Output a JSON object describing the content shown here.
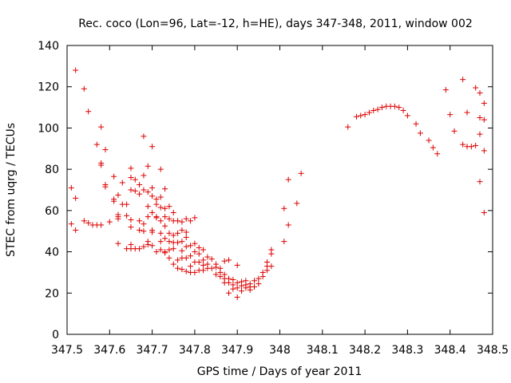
{
  "chart_data": {
    "type": "scatter",
    "title": "Rec. coco (Lon=96, Lat=-12, h=HE), days 347-348, 2011, window 002",
    "xlabel": "GPS time / Days of year 2011",
    "ylabel": "STEC from uqrg / TECUs",
    "xlim": [
      347.5,
      348.5
    ],
    "ylim": [
      0,
      140
    ],
    "xticks": [
      "347.5",
      "347.6",
      "347.7",
      "347.8",
      "347.9",
      "348",
      "348.1",
      "348.2",
      "348.3",
      "348.4",
      "348.5"
    ],
    "yticks": [
      "0",
      "20",
      "40",
      "60",
      "80",
      "100",
      "120",
      "140"
    ],
    "grid": false,
    "marker": "+",
    "color": "#dd0000",
    "series": [
      {
        "points": [
          [
            347.51,
            71
          ],
          [
            347.51,
            53.5
          ],
          [
            347.52,
            128
          ],
          [
            347.52,
            66
          ],
          [
            347.52,
            50.5
          ],
          [
            347.54,
            119
          ],
          [
            347.54,
            55
          ],
          [
            347.55,
            108
          ],
          [
            347.55,
            54
          ],
          [
            347.56,
            53
          ],
          [
            347.57,
            92
          ],
          [
            347.57,
            53
          ],
          [
            347.58,
            100.5
          ],
          [
            347.58,
            83
          ],
          [
            347.58,
            82
          ],
          [
            347.58,
            53
          ],
          [
            347.59,
            89.5
          ],
          [
            347.59,
            72.5
          ],
          [
            347.59,
            71.5
          ],
          [
            347.6,
            54.5
          ],
          [
            347.61,
            76.5
          ],
          [
            347.61,
            65.5
          ],
          [
            347.61,
            64.5
          ],
          [
            347.62,
            56
          ],
          [
            347.62,
            58
          ],
          [
            347.62,
            44
          ],
          [
            347.62,
            57
          ],
          [
            347.62,
            67.5
          ],
          [
            347.63,
            73.5
          ],
          [
            347.63,
            63
          ],
          [
            347.64,
            63
          ],
          [
            347.64,
            41.5
          ],
          [
            347.64,
            57.5
          ],
          [
            347.65,
            80.5
          ],
          [
            347.65,
            76
          ],
          [
            347.65,
            70
          ],
          [
            347.65,
            55.5
          ],
          [
            347.65,
            43.5
          ],
          [
            347.65,
            52
          ],
          [
            347.65,
            41.5
          ],
          [
            347.66,
            75
          ],
          [
            347.66,
            69.5
          ],
          [
            347.66,
            41.5
          ],
          [
            347.67,
            72.5
          ],
          [
            347.67,
            68
          ],
          [
            347.67,
            55
          ],
          [
            347.67,
            50.5
          ],
          [
            347.67,
            41.5
          ],
          [
            347.68,
            96
          ],
          [
            347.68,
            77
          ],
          [
            347.68,
            70
          ],
          [
            347.68,
            50
          ],
          [
            347.68,
            42.5
          ],
          [
            347.68,
            53.5
          ],
          [
            347.69,
            81.5
          ],
          [
            347.69,
            69
          ],
          [
            347.69,
            62
          ],
          [
            347.69,
            57
          ],
          [
            347.69,
            45
          ],
          [
            347.69,
            43.5
          ],
          [
            347.7,
            91
          ],
          [
            347.7,
            71
          ],
          [
            347.7,
            67
          ],
          [
            347.7,
            59
          ],
          [
            347.7,
            50.5
          ],
          [
            347.7,
            49.5
          ],
          [
            347.7,
            43
          ],
          [
            347.71,
            57
          ],
          [
            347.71,
            65.5
          ],
          [
            347.71,
            40
          ],
          [
            347.71,
            63
          ],
          [
            347.71,
            56.5
          ],
          [
            347.72,
            80
          ],
          [
            347.72,
            66.5
          ],
          [
            347.72,
            61.5
          ],
          [
            347.72,
            55
          ],
          [
            347.72,
            49
          ],
          [
            347.72,
            45
          ],
          [
            347.72,
            41
          ],
          [
            347.73,
            70.5
          ],
          [
            347.73,
            61
          ],
          [
            347.73,
            57
          ],
          [
            347.73,
            52.5
          ],
          [
            347.73,
            46.5
          ],
          [
            347.73,
            40
          ],
          [
            347.73,
            39.5
          ],
          [
            347.74,
            62
          ],
          [
            347.74,
            56
          ],
          [
            347.74,
            49
          ],
          [
            347.74,
            45
          ],
          [
            347.74,
            41
          ],
          [
            347.74,
            37
          ],
          [
            347.75,
            59
          ],
          [
            347.75,
            55
          ],
          [
            347.75,
            48
          ],
          [
            347.75,
            44.5
          ],
          [
            347.75,
            41.5
          ],
          [
            347.75,
            34
          ],
          [
            347.76,
            55
          ],
          [
            347.76,
            49
          ],
          [
            347.76,
            44.5
          ],
          [
            347.76,
            36
          ],
          [
            347.76,
            32
          ],
          [
            347.77,
            54.5
          ],
          [
            347.77,
            50.5
          ],
          [
            347.77,
            45
          ],
          [
            347.77,
            40.5
          ],
          [
            347.77,
            37
          ],
          [
            347.77,
            31.5
          ],
          [
            347.78,
            56
          ],
          [
            347.78,
            49.5
          ],
          [
            347.78,
            47
          ],
          [
            347.78,
            42.5
          ],
          [
            347.78,
            37
          ],
          [
            347.78,
            30.5
          ],
          [
            347.79,
            55
          ],
          [
            347.79,
            43
          ],
          [
            347.79,
            38
          ],
          [
            347.79,
            33
          ],
          [
            347.79,
            30
          ],
          [
            347.8,
            56.5
          ],
          [
            347.8,
            44
          ],
          [
            347.8,
            40
          ],
          [
            347.8,
            35
          ],
          [
            347.8,
            30
          ],
          [
            347.81,
            42
          ],
          [
            347.81,
            39
          ],
          [
            347.81,
            35
          ],
          [
            347.81,
            31
          ],
          [
            347.82,
            41
          ],
          [
            347.82,
            36
          ],
          [
            347.82,
            33.5
          ],
          [
            347.82,
            31
          ],
          [
            347.83,
            37.5
          ],
          [
            347.83,
            34
          ],
          [
            347.83,
            32
          ],
          [
            347.84,
            36.5
          ],
          [
            347.84,
            32
          ],
          [
            347.85,
            34
          ],
          [
            347.85,
            32.5
          ],
          [
            347.85,
            29
          ],
          [
            347.86,
            32
          ],
          [
            347.86,
            30
          ],
          [
            347.86,
            28
          ],
          [
            347.87,
            35.5
          ],
          [
            347.87,
            29
          ],
          [
            347.87,
            27
          ],
          [
            347.87,
            25
          ],
          [
            347.88,
            36
          ],
          [
            347.88,
            27
          ],
          [
            347.88,
            25
          ],
          [
            347.88,
            20
          ],
          [
            347.89,
            26.5
          ],
          [
            347.89,
            24
          ],
          [
            347.89,
            22
          ],
          [
            347.9,
            33.5
          ],
          [
            347.9,
            25
          ],
          [
            347.9,
            22.5
          ],
          [
            347.9,
            18
          ],
          [
            347.91,
            25.5
          ],
          [
            347.91,
            23.5
          ],
          [
            347.91,
            21
          ],
          [
            347.92,
            26
          ],
          [
            347.92,
            24
          ],
          [
            347.92,
            22.5
          ],
          [
            347.93,
            24.5
          ],
          [
            347.93,
            23
          ],
          [
            347.93,
            21.5
          ],
          [
            347.94,
            26
          ],
          [
            347.94,
            23
          ],
          [
            347.95,
            27
          ],
          [
            347.95,
            24.5
          ],
          [
            347.96,
            30
          ],
          [
            347.96,
            28
          ],
          [
            347.97,
            35
          ],
          [
            347.97,
            33
          ],
          [
            347.97,
            31
          ],
          [
            347.98,
            41
          ],
          [
            347.98,
            39
          ],
          [
            347.98,
            33
          ],
          [
            348.01,
            45
          ],
          [
            348.01,
            61
          ],
          [
            348.02,
            75
          ],
          [
            348.02,
            53
          ],
          [
            348.04,
            63.5
          ],
          [
            348.05,
            78
          ],
          [
            348.16,
            100.5
          ],
          [
            348.18,
            105.5
          ],
          [
            348.19,
            106
          ],
          [
            348.2,
            106.5
          ],
          [
            348.21,
            107.5
          ],
          [
            348.22,
            108.5
          ],
          [
            348.23,
            109
          ],
          [
            348.24,
            110
          ],
          [
            348.25,
            110.5
          ],
          [
            348.26,
            110.5
          ],
          [
            348.27,
            110.5
          ],
          [
            348.28,
            110
          ],
          [
            348.29,
            108.5
          ],
          [
            348.3,
            106
          ],
          [
            348.32,
            102
          ],
          [
            348.33,
            97.5
          ],
          [
            348.35,
            94
          ],
          [
            348.36,
            90.5
          ],
          [
            348.37,
            87.5
          ],
          [
            348.39,
            118.5
          ],
          [
            348.4,
            106.5
          ],
          [
            348.41,
            98.5
          ],
          [
            348.43,
            123.5
          ],
          [
            348.43,
            92
          ],
          [
            348.44,
            107.5
          ],
          [
            348.44,
            91
          ],
          [
            348.45,
            91
          ],
          [
            348.46,
            119.5
          ],
          [
            348.46,
            91.5
          ],
          [
            348.47,
            117
          ],
          [
            348.47,
            105
          ],
          [
            348.47,
            97
          ],
          [
            348.47,
            74
          ],
          [
            348.48,
            112
          ],
          [
            348.48,
            104
          ],
          [
            348.48,
            89
          ],
          [
            348.48,
            59
          ]
        ]
      }
    ]
  }
}
